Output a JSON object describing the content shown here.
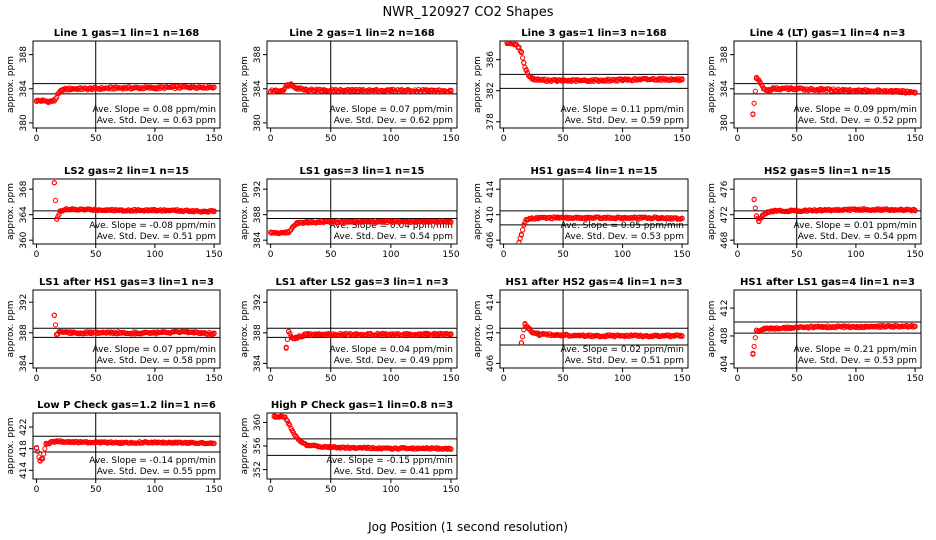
{
  "figure": {
    "title": "NWR_120927  CO2 Shapes",
    "xlabel": "Jog Position (1 second resolution)"
  },
  "chart_data": [
    {
      "type": "scatter",
      "title": "Line 1 gas=1 lin=1 n=168",
      "ylabel": "approx. ppm",
      "xticks": [
        0,
        50,
        100,
        150
      ],
      "yticks": [
        380,
        384,
        388
      ],
      "xlim": [
        -3,
        155
      ],
      "ylim": [
        379.4,
        389.6
      ],
      "vline": 50,
      "hlines": [
        383.4,
        384.6
      ],
      "slope_text": "Ave. Slope =  0.08  ppm/min",
      "std_text": "Ave. Std. Dev. =  0.63  ppm",
      "color": "#ff0000",
      "series": [
        {
          "x": [
            0,
            5,
            10,
            15,
            19,
            22,
            30,
            45,
            70,
            100,
            130,
            150
          ],
          "y": [
            382.6,
            382.6,
            382.5,
            382.6,
            383.5,
            383.9,
            384.0,
            384.0,
            384.1,
            384.1,
            384.2,
            384.2
          ]
        }
      ]
    },
    {
      "type": "scatter",
      "title": "Line 2 gas=1 lin=2 n=168",
      "ylabel": "approx. ppm",
      "xticks": [
        0,
        50,
        100,
        150
      ],
      "yticks": [
        380,
        384,
        388
      ],
      "xlim": [
        -3,
        155
      ],
      "ylim": [
        379.4,
        389.6
      ],
      "vline": 50,
      "hlines": [
        383.4,
        384.6
      ],
      "slope_text": "Ave. Slope =  0.07  ppm/min",
      "std_text": "Ave. Std. Dev. =  0.62  ppm",
      "color": "#ff0000",
      "series": [
        {
          "x": [
            0,
            5,
            10,
            14,
            17,
            22,
            30,
            45,
            70,
            100,
            130,
            150
          ],
          "y": [
            383.7,
            383.8,
            383.8,
            384.4,
            384.5,
            384.1,
            383.9,
            383.8,
            383.8,
            383.8,
            383.8,
            383.7
          ]
        }
      ]
    },
    {
      "type": "scatter",
      "title": "Line 3 gas=1 lin=3 n=168",
      "ylabel": "approx. ppm",
      "xticks": [
        0,
        50,
        100,
        150
      ],
      "yticks": [
        378,
        382,
        386
      ],
      "xlim": [
        -3,
        155
      ],
      "ylim": [
        377.2,
        388.4
      ],
      "vline": 50,
      "hlines": [
        382.3,
        384.1
      ],
      "slope_text": "Ave. Slope =  0.11  ppm/min",
      "std_text": "Ave. Std. Dev. =  0.59  ppm",
      "color": "#ff0000",
      "series": [
        {
          "x": [
            3,
            8,
            13,
            15,
            17,
            19,
            22,
            25,
            30,
            45,
            70,
            100,
            130,
            150
          ],
          "y": [
            388.2,
            388.1,
            387.6,
            386.9,
            385.6,
            384.6,
            383.8,
            383.5,
            383.4,
            383.3,
            383.3,
            383.4,
            383.5,
            383.4
          ]
        }
      ]
    },
    {
      "type": "scatter",
      "title": "Line 4 (LT) gas=1 lin=4 n=3",
      "ylabel": "approx. ppm",
      "xticks": [
        0,
        50,
        100,
        150
      ],
      "yticks": [
        380,
        384,
        388
      ],
      "xlim": [
        -3,
        155
      ],
      "ylim": [
        379.4,
        389.6
      ],
      "vline": 50,
      "hlines": [
        383.4,
        384.6
      ],
      "slope_text": "Ave. Slope =  0.09  ppm/min",
      "std_text": "Ave. Std. Dev. =  0.52  ppm",
      "color": "#ff0000",
      "series": [
        {
          "x": [
            13,
            16,
            19,
            22,
            26,
            30,
            45,
            70,
            100,
            130,
            150
          ],
          "y": [
            381.0,
            385.2,
            384.8,
            384.0,
            383.8,
            384.0,
            384.0,
            383.9,
            383.8,
            383.7,
            383.6
          ]
        }
      ]
    },
    {
      "type": "scatter",
      "title": "LS2 gas=2 lin=1 n=15",
      "ylabel": "approx. ppm",
      "xticks": [
        0,
        50,
        100,
        150
      ],
      "yticks": [
        360,
        364,
        368
      ],
      "xlim": [
        -3,
        155
      ],
      "ylim": [
        359.4,
        369.6
      ],
      "vline": 50,
      "hlines": [
        363.4,
        364.6
      ],
      "slope_text": "Ave. Slope =  -0.08  ppm/min",
      "std_text": "Ave. Std. Dev. =  0.51  ppm",
      "color": "#ff0000",
      "series": [
        {
          "x": [
            15,
            17,
            20,
            24,
            30,
            45,
            70,
            100,
            130,
            150
          ],
          "y": [
            369.0,
            363.3,
            364.6,
            364.8,
            364.8,
            364.8,
            364.7,
            364.7,
            364.6,
            364.5
          ]
        }
      ]
    },
    {
      "type": "scatter",
      "title": "LS1 gas=3 lin=1 n=15",
      "ylabel": "approx. ppm",
      "xticks": [
        0,
        50,
        100,
        150
      ],
      "yticks": [
        384,
        388,
        392
      ],
      "xlim": [
        -3,
        155
      ],
      "ylim": [
        383.4,
        393.6
      ],
      "vline": 50,
      "hlines": [
        387.4,
        388.6
      ],
      "slope_text": "Ave. Slope =  0.04  ppm/min",
      "std_text": "Ave. Std. Dev. =  0.54  ppm",
      "color": "#ff0000",
      "series": [
        {
          "x": [
            0,
            5,
            10,
            15,
            18,
            22,
            30,
            45,
            70,
            100,
            130,
            150
          ],
          "y": [
            385.2,
            385.1,
            385.2,
            385.2,
            386.0,
            386.7,
            386.8,
            386.9,
            386.9,
            386.9,
            386.9,
            386.9
          ]
        }
      ]
    },
    {
      "type": "scatter",
      "title": "HS1 gas=4 lin=1 n=15",
      "ylabel": "approx. ppm",
      "xticks": [
        0,
        50,
        100,
        150
      ],
      "yticks": [
        406,
        410,
        414
      ],
      "xlim": [
        -3,
        155
      ],
      "ylim": [
        405.4,
        415.6
      ],
      "vline": 50,
      "hlines": [
        408.4,
        410.6
      ],
      "slope_text": "Ave. Slope =  0.05  ppm/min",
      "std_text": "Ave. Std. Dev. =  0.53  ppm",
      "color": "#ff0000",
      "series": [
        {
          "x": [
            13,
            15,
            17,
            19,
            22,
            30,
            45,
            70,
            100,
            130,
            150
          ],
          "y": [
            405.6,
            406.8,
            408.4,
            409.2,
            409.4,
            409.5,
            409.5,
            409.5,
            409.5,
            409.5,
            409.4
          ]
        }
      ]
    },
    {
      "type": "scatter",
      "title": "HS2 gas=5 lin=1 n=15",
      "ylabel": "approx. ppm",
      "xticks": [
        0,
        50,
        100,
        150
      ],
      "yticks": [
        468,
        472,
        476
      ],
      "xlim": [
        -3,
        155
      ],
      "ylim": [
        467.4,
        477.6
      ],
      "vline": 50,
      "hlines": [
        471.4,
        472.6
      ],
      "slope_text": "Ave. Slope =  0.01  ppm/min",
      "std_text": "Ave. Std. Dev. =  0.54  ppm",
      "color": "#ff0000",
      "series": [
        {
          "x": [
            14,
            16,
            18,
            21,
            25,
            30,
            45,
            70,
            100,
            130,
            150
          ],
          "y": [
            474.4,
            471.8,
            471.0,
            471.9,
            472.4,
            472.6,
            472.6,
            472.7,
            472.8,
            472.8,
            472.7
          ]
        }
      ]
    },
    {
      "type": "scatter",
      "title": "LS1 after HS1 gas=3 lin=1 n=3",
      "ylabel": "approx. ppm",
      "xticks": [
        0,
        50,
        100,
        150
      ],
      "yticks": [
        384,
        388,
        392
      ],
      "xlim": [
        -3,
        155
      ],
      "ylim": [
        383.4,
        393.6
      ],
      "vline": 50,
      "hlines": [
        387.4,
        388.6
      ],
      "slope_text": "Ave. Slope =  0.07  ppm/min",
      "std_text": "Ave. Std. Dev. =  0.58  ppm",
      "color": "#ff0000",
      "series": [
        {
          "x": [
            15,
            17,
            20,
            25,
            30,
            45,
            70,
            100,
            130,
            150
          ],
          "y": [
            390.3,
            387.8,
            388.2,
            388.1,
            388.0,
            388.0,
            388.0,
            388.0,
            388.1,
            387.9
          ]
        }
      ]
    },
    {
      "type": "scatter",
      "title": "LS1 after LS2 gas=3 lin=1 n=3",
      "ylabel": "approx. ppm",
      "xticks": [
        0,
        50,
        100,
        150
      ],
      "yticks": [
        384,
        388,
        392
      ],
      "xlim": [
        -3,
        155
      ],
      "ylim": [
        383.4,
        393.6
      ],
      "vline": 50,
      "hlines": [
        387.4,
        388.6
      ],
      "slope_text": "Ave. Slope =  0.04  ppm/min",
      "std_text": "Ave. Std. Dev. =  0.49  ppm",
      "color": "#ff0000",
      "series": [
        {
          "x": [
            13,
            15,
            18,
            22,
            30,
            45,
            70,
            100,
            130,
            150
          ],
          "y": [
            386.0,
            388.2,
            387.3,
            387.4,
            387.8,
            387.8,
            387.8,
            387.8,
            387.8,
            387.8
          ]
        }
      ]
    },
    {
      "type": "scatter",
      "title": "HS1 after HS2 gas=4 lin=1 n=3",
      "ylabel": "approx. ppm",
      "xticks": [
        0,
        50,
        100,
        150
      ],
      "yticks": [
        406,
        410,
        414
      ],
      "xlim": [
        -3,
        155
      ],
      "ylim": [
        405.4,
        415.6
      ],
      "vline": 50,
      "hlines": [
        408.4,
        410.6
      ],
      "slope_text": "Ave. Slope =  0.02  ppm/min",
      "std_text": "Ave. Std. Dev. =  0.51  ppm",
      "color": "#ff0000",
      "series": [
        {
          "x": [
            15,
            18,
            21,
            25,
            30,
            45,
            70,
            100,
            130,
            150
          ],
          "y": [
            408.7,
            411.2,
            410.6,
            410.0,
            409.8,
            409.7,
            409.6,
            409.6,
            409.6,
            409.6
          ]
        }
      ]
    },
    {
      "type": "scatter",
      "title": "HS1 after LS1 gas=4 lin=1 n=3",
      "ylabel": "approx. ppm",
      "xticks": [
        0,
        50,
        100,
        150
      ],
      "yticks": [
        404,
        408,
        412
      ],
      "xlim": [
        -3,
        155
      ],
      "ylim": [
        403.4,
        414.6
      ],
      "vline": 50,
      "hlines": [
        408.4,
        410.0
      ],
      "slope_text": "Ave. Slope =  0.21  ppm/min",
      "std_text": "Ave. Std. Dev. =  0.53  ppm",
      "color": "#ff0000",
      "series": [
        {
          "x": [
            13,
            16,
            19,
            23,
            30,
            45,
            70,
            100,
            130,
            150
          ],
          "y": [
            405.5,
            408.8,
            408.7,
            409.0,
            409.1,
            409.2,
            409.3,
            409.3,
            409.4,
            409.4
          ]
        }
      ]
    },
    {
      "type": "scatter",
      "title": "Low P Check gas=1.2 lin=1 n=6",
      "ylabel": "approx. ppm",
      "xticks": [
        0,
        50,
        100,
        150
      ],
      "yticks": [
        414,
        418,
        422
      ],
      "xlim": [
        -3,
        155
      ],
      "ylim": [
        412.4,
        424.6
      ],
      "vline": 50,
      "hlines": [
        417.4,
        420.3
      ],
      "slope_text": "Ave. Slope =  -0.14  ppm/min",
      "std_text": "Ave. Std. Dev. =  0.55  ppm",
      "color": "#ff0000",
      "series": [
        {
          "x": [
            0,
            3,
            5,
            8,
            12,
            18,
            30,
            45,
            70,
            100,
            130,
            150
          ],
          "y": [
            418.2,
            415.8,
            416.2,
            418.9,
            419.2,
            419.4,
            419.2,
            419.2,
            419.1,
            419.2,
            419.1,
            419.0
          ]
        }
      ]
    },
    {
      "type": "scatter",
      "title": "High P Check gas=1 lin=0.8 n=3",
      "ylabel": "approx. ppm",
      "xticks": [
        0,
        50,
        100,
        150
      ],
      "yticks": [
        352,
        356,
        360
      ],
      "xlim": [
        -3,
        155
      ],
      "ylim": [
        350.4,
        361.6
      ],
      "vline": 50,
      "hlines": [
        354.4,
        357.2
      ],
      "slope_text": "Ave. Slope =  -0.15  ppm/min",
      "std_text": "Ave. Std. Dev. =  0.41  ppm",
      "color": "#ff0000",
      "series": [
        {
          "x": [
            3,
            12,
            15,
            18,
            21,
            25,
            30,
            40,
            50,
            70,
            100,
            130,
            150
          ],
          "y": [
            361.0,
            360.9,
            359.8,
            358.6,
            357.6,
            356.8,
            356.2,
            355.9,
            355.8,
            355.7,
            355.6,
            355.6,
            355.5
          ]
        }
      ]
    }
  ]
}
